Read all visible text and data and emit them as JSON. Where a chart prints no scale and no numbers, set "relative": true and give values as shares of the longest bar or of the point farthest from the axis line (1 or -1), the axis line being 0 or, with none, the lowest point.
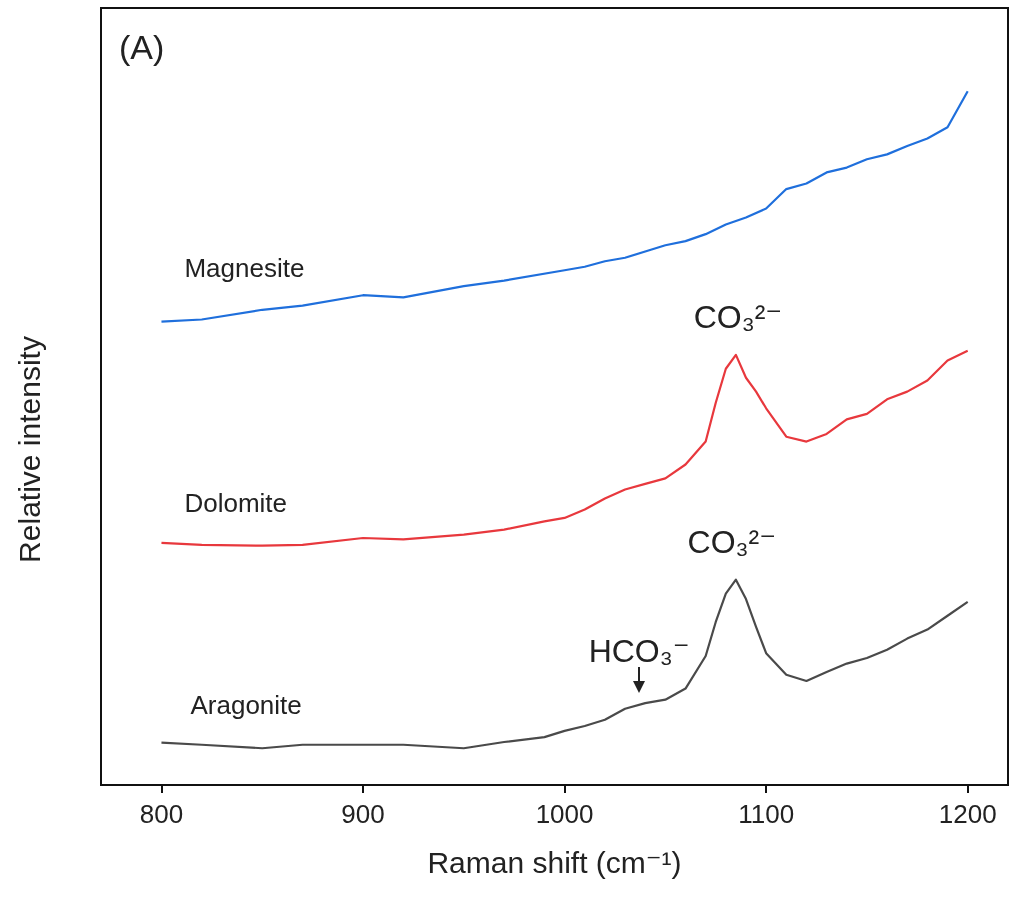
{
  "chart_data": {
    "type": "line",
    "relative": true,
    "xlabel": "Raman shift (cm⁻¹)",
    "ylabel": "Relative intensity",
    "xlim": [
      770,
      1220
    ],
    "xticks": [
      800,
      900,
      1000,
      1100,
      1200
    ],
    "marker": "none",
    "line_style": "solid",
    "x": [
      800,
      820,
      850,
      870,
      900,
      920,
      950,
      970,
      990,
      1000,
      1010,
      1020,
      1030,
      1040,
      1050,
      1060,
      1070,
      1075,
      1080,
      1085,
      1090,
      1095,
      1100,
      1110,
      1120,
      1130,
      1140,
      1150,
      1160,
      1170,
      1180,
      1190,
      1200
    ],
    "series": [
      {
        "name": "Magnesite",
        "color": "#1f6fdc",
        "x": [
          800,
          820,
          850,
          870,
          900,
          920,
          950,
          970,
          1000,
          1010,
          1020,
          1030,
          1040,
          1050,
          1060,
          1070,
          1080,
          1090,
          1100,
          1110,
          1120,
          1130,
          1140,
          1150,
          1160,
          1170,
          1180,
          1190,
          1200
        ],
        "values": [
          0.668,
          0.671,
          0.685,
          0.691,
          0.706,
          0.703,
          0.719,
          0.727,
          0.742,
          0.747,
          0.755,
          0.76,
          0.769,
          0.778,
          0.784,
          0.794,
          0.808,
          0.818,
          0.831,
          0.859,
          0.867,
          0.883,
          0.89,
          0.902,
          0.909,
          0.921,
          0.932,
          0.948,
          1.0
        ]
      },
      {
        "name": "Dolomite",
        "color": "#e8383d",
        "values": [
          0.349,
          0.346,
          0.345,
          0.346,
          0.356,
          0.354,
          0.361,
          0.368,
          0.38,
          0.385,
          0.397,
          0.413,
          0.426,
          0.434,
          0.442,
          0.462,
          0.495,
          0.551,
          0.6,
          0.62,
          0.587,
          0.567,
          0.543,
          0.502,
          0.495,
          0.506,
          0.527,
          0.535,
          0.556,
          0.567,
          0.583,
          0.612,
          0.626
        ]
      },
      {
        "name": "Aragonite",
        "color": "#4a4a4a",
        "values": [
          0.061,
          0.058,
          0.053,
          0.058,
          0.058,
          0.058,
          0.053,
          0.062,
          0.069,
          0.078,
          0.085,
          0.094,
          0.11,
          0.118,
          0.123,
          0.139,
          0.186,
          0.235,
          0.276,
          0.296,
          0.268,
          0.228,
          0.19,
          0.159,
          0.15,
          0.163,
          0.175,
          0.183,
          0.195,
          0.211,
          0.224,
          0.244,
          0.264
        ]
      }
    ],
    "annotations": [
      "(A)",
      {
        "text": "CO₃²⁻",
        "x": 1086,
        "y": 0.62
      },
      {
        "text": "CO₃²⁻",
        "x": 1083,
        "y": 0.296
      },
      {
        "text": "HCO₃⁻",
        "x": 1037,
        "y": 0.118
      }
    ]
  }
}
